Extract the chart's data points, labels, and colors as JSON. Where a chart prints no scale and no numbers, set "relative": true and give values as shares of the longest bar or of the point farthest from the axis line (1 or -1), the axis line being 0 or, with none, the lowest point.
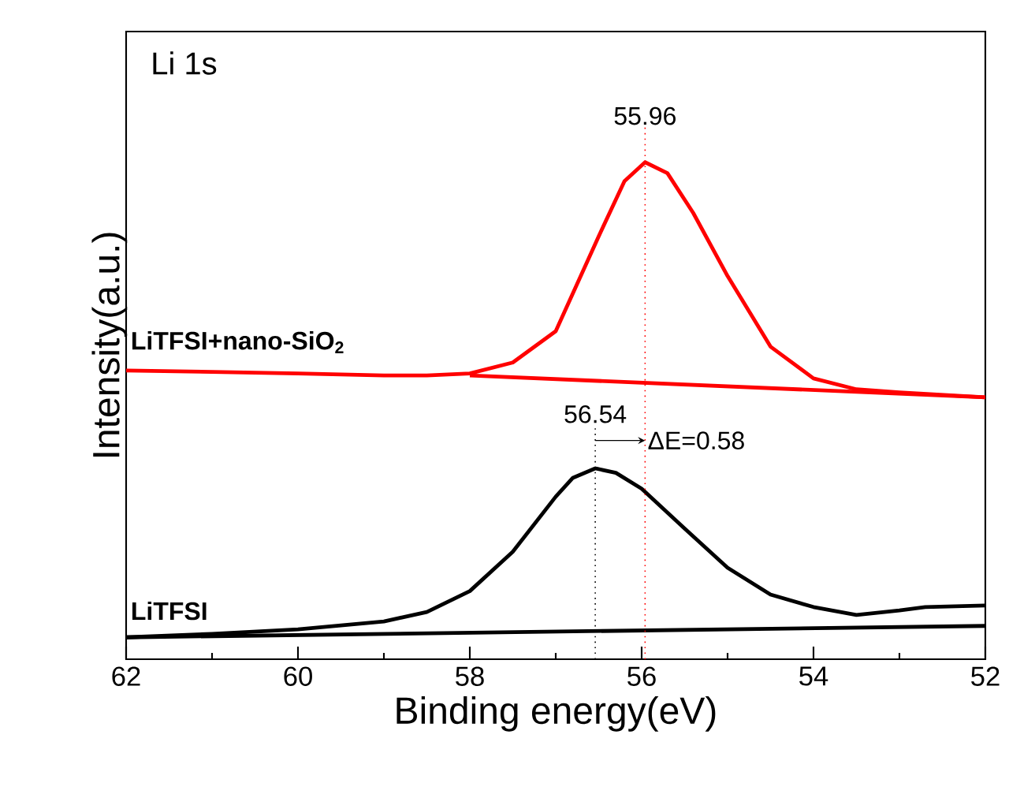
{
  "chart_data": {
    "type": "line",
    "relative": true,
    "title": "Li 1s",
    "xlabel": "Binding energy(eV)",
    "ylabel": "Intensity(a.u.)",
    "xlim": [
      62,
      52
    ],
    "xticks": [
      62,
      60,
      58,
      56,
      54,
      52
    ],
    "tick_labels": "x",
    "marker": "none",
    "line_style": "solid",
    "series": [
      {
        "name": "LiTFSI+nano-SiO$_{2}$",
        "color": "#ff0000",
        "x": [
          62,
          61,
          60,
          59,
          58.5,
          58,
          57.5,
          57,
          56.5,
          56.2,
          55.96,
          55.7,
          55.4,
          55,
          54.5,
          54,
          53.5,
          53,
          52
        ],
        "values": [
          0.581,
          0.578,
          0.575,
          0.571,
          0.571,
          0.575,
          0.597,
          0.66,
          0.851,
          0.962,
          1,
          0.978,
          0.898,
          0.771,
          0.629,
          0.565,
          0.543,
          0.537,
          0.527
        ]
      },
      {
        "color": "#ff0000",
        "x": [
          58,
          52
        ],
        "values": [
          0.571,
          0.527
        ]
      },
      {
        "name": "LiTFSI",
        "color": "#000000",
        "x": [
          62,
          61,
          60,
          59,
          58.5,
          58,
          57.5,
          57,
          56.8,
          56.54,
          56.3,
          56,
          55.5,
          55,
          54.5,
          54,
          53.5,
          53,
          52.7,
          52
        ],
        "values": [
          0.044,
          0.051,
          0.06,
          0.076,
          0.095,
          0.137,
          0.216,
          0.327,
          0.365,
          0.384,
          0.375,
          0.343,
          0.263,
          0.184,
          0.13,
          0.105,
          0.089,
          0.098,
          0.105,
          0.108
        ]
      },
      {
        "color": "#000000",
        "x": [
          62,
          52
        ],
        "values": [
          0.044,
          0.067
        ]
      }
    ],
    "ref_lines": [
      {
        "axis": "x",
        "value": 56.54,
        "label": "56.54",
        "color": "#000000",
        "line_style": "dotted"
      },
      {
        "axis": "x",
        "value": 55.96,
        "label": "55.96",
        "color": "#ff0000",
        "line_style": "dotted"
      }
    ],
    "annotations": [
      "ΔE=0.58"
    ]
  }
}
